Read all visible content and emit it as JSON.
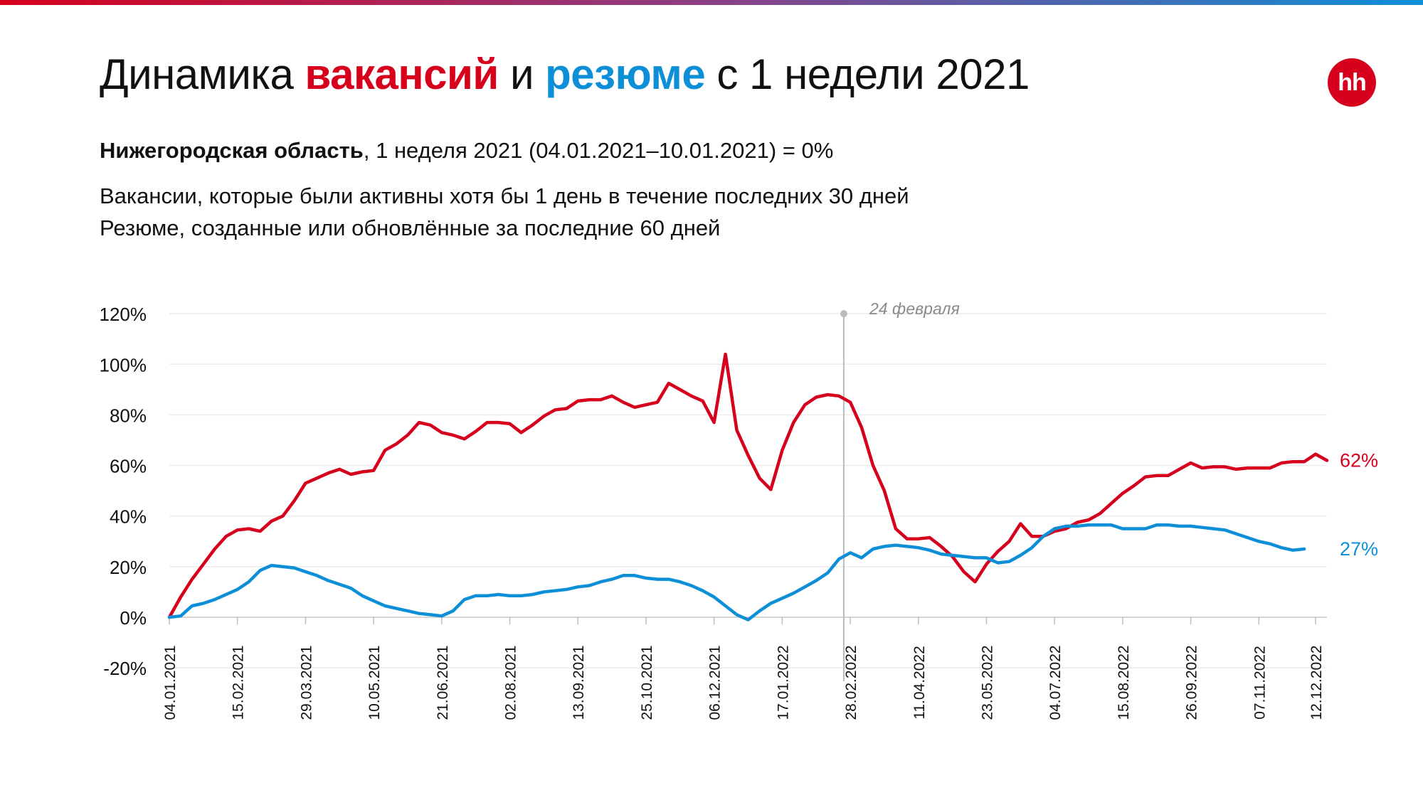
{
  "header": {
    "title_before": "Динамика ",
    "title_vac": "вакансий",
    "title_mid": " и ",
    "title_res": "резюме",
    "title_after": " с 1 недели 2021",
    "logo_text": "hh",
    "subtitle_region": "Нижегородская область",
    "subtitle_rest": ", 1 неделя 2021 (04.01.2021–10.01.2021) = 0%",
    "desc_line1": "Вакансии, которые были активны хотя бы 1 день в течение последних 30 дней",
    "desc_line2": "Резюме, созданные или обновлённые за последние 60 дней"
  },
  "colors": {
    "vacancies": "#d6001c",
    "resumes": "#0d8fd8",
    "event_line": "#bbbbbb",
    "grid": "#ececec"
  },
  "chart_data": {
    "type": "line",
    "x_start": "04.01.2021",
    "x_step_weeks": 1,
    "x_tick_labels": [
      "04.01.2021",
      "15.02.2021",
      "29.03.2021",
      "10.05.2021",
      "21.06.2021",
      "02.08.2021",
      "13.09.2021",
      "25.10.2021",
      "06.12.2021",
      "17.01.2022",
      "28.02.2022",
      "11.04.2022",
      "23.05.2022",
      "04.07.2022",
      "15.08.2022",
      "26.09.2022",
      "07.11.2022",
      "12.12.2022"
    ],
    "y_ticks": [
      -20,
      0,
      20,
      40,
      60,
      80,
      100,
      120
    ],
    "y_tick_labels": [
      "-20%",
      "0%",
      "20%",
      "40%",
      "60%",
      "80%",
      "100%",
      "120%"
    ],
    "ylim": [
      -20,
      120
    ],
    "grid": true,
    "event": {
      "date": "24.02.2022",
      "label": "24 февраля"
    },
    "series": [
      {
        "key": "vacancies",
        "end_label": "62%",
        "values": [
          0,
          8,
          15,
          21,
          27,
          32,
          34.5,
          35,
          34,
          38,
          40,
          46,
          53,
          55,
          57,
          58.5,
          56.5,
          57.5,
          58,
          66,
          68.5,
          72,
          77,
          76,
          73,
          72,
          70.5,
          73.5,
          77,
          77,
          76.5,
          73,
          76,
          79.5,
          82,
          82.5,
          85.5,
          86,
          86,
          87.5,
          85,
          83,
          84,
          85,
          92.5,
          90,
          87.5,
          85.5,
          77,
          104,
          74,
          64,
          55,
          50.5,
          66,
          77,
          84,
          87,
          88,
          87.5,
          85,
          75,
          60,
          50,
          35,
          31,
          31,
          31.5,
          28,
          24,
          18,
          14,
          21,
          26,
          30,
          37,
          32,
          32,
          34,
          35,
          37.5,
          38.5,
          41,
          45,
          49,
          52,
          55.5,
          56,
          56,
          58.5,
          61,
          59,
          59.5,
          59.5,
          58.5,
          59,
          59,
          59,
          61,
          61.5,
          61.5,
          64.5,
          62
        ]
      },
      {
        "key": "resumes",
        "end_label": "27%",
        "values": [
          0,
          0.5,
          4.5,
          5.5,
          7,
          9,
          11,
          14,
          18.5,
          20.5,
          20,
          19.5,
          18,
          16.5,
          14.5,
          13,
          11.5,
          8.5,
          6.5,
          4.5,
          3.5,
          2.5,
          1.5,
          1,
          0.5,
          2.5,
          7,
          8.5,
          8.5,
          9,
          8.5,
          8.5,
          9,
          10,
          10.5,
          11,
          12,
          12.5,
          14,
          15,
          16.5,
          16.5,
          15.5,
          15,
          15,
          14,
          12.5,
          10.5,
          8,
          4.5,
          1,
          -1,
          2.5,
          5.5,
          7.5,
          9.5,
          12,
          14.5,
          17.5,
          23,
          25.5,
          23.5,
          27,
          28,
          28.5,
          28,
          27.5,
          26.5,
          25,
          24.5,
          24,
          23.5,
          23.5,
          21.5,
          22,
          24.5,
          27.5,
          32,
          35,
          36,
          36,
          36.5,
          36.5,
          36.5,
          35,
          35,
          35,
          36.5,
          36.5,
          36,
          36,
          35.5,
          35,
          34.5,
          33,
          31.5,
          30,
          29,
          27.5,
          26.5,
          27
        ]
      }
    ]
  }
}
